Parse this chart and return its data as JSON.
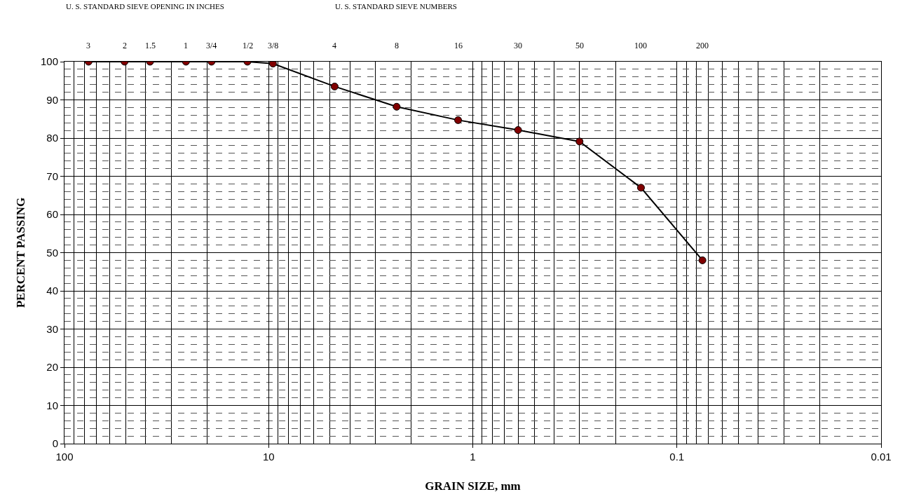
{
  "chart_data": {
    "type": "line",
    "xlabel": "GRAIN SIZE, mm",
    "ylabel": "PERCENT PASSING",
    "annotations": [
      "U. S. STANDARD SIEVE OPENING IN INCHES",
      "U. S. STANDARD SIEVE NUMBERS",
      "3",
      "2",
      "1.5",
      "1",
      "3/4",
      "1/2",
      "3/8",
      "4",
      "8",
      "16",
      "30",
      "50",
      "100",
      "200"
    ],
    "x": [
      76.2,
      50.8,
      38.1,
      25.4,
      19.05,
      12.7,
      9.525,
      4.75,
      2.36,
      1.18,
      0.6,
      0.3,
      0.15,
      0.075
    ],
    "series": [
      {
        "color": "#800000",
        "values": [
          100,
          100,
          100,
          100,
          100,
          100,
          99.5,
          93.5,
          88.2,
          84.7,
          82.1,
          79.1,
          67,
          48
        ]
      }
    ],
    "log": "x",
    "xlim": [
      100,
      0.01
    ],
    "xticks": [
      100,
      10,
      1,
      0.1,
      0.01
    ],
    "ylim": [
      0,
      100
    ],
    "yticks": [
      0,
      10,
      20,
      30,
      40,
      50,
      60,
      70,
      80,
      90,
      100
    ],
    "grid": true,
    "marker": "circle",
    "line_style": "solid"
  }
}
